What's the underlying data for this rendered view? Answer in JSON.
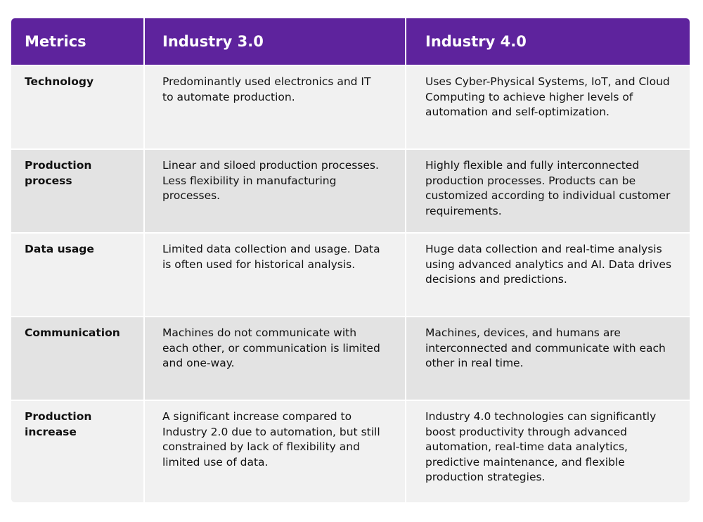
{
  "header": [
    "Metrics",
    "Industry 3.0",
    "Industry 4.0"
  ],
  "rows": [
    {
      "metric": "Technology",
      "i3": "Predominantly used electronics and IT to automate production.",
      "i4": "Uses Cyber-Physical Systems, IoT, and Cloud Computing to achieve higher levels of automation and self-optimization."
    },
    {
      "metric": "Production process",
      "i3": "Linear and siloed production processes. Less flexibility in manufacturing processes.",
      "i4": "Highly flexible and fully interconnected production processes. Products can be customized according to individual customer requirements."
    },
    {
      "metric": "Data usage",
      "i3": "Limited data collection and usage. Data is often used for historical analysis.",
      "i4": "Huge data collection and real-time analysis using advanced analytics and AI. Data drives decisions and predictions."
    },
    {
      "metric": "Communication",
      "i3": "Machines do not communicate with each other, or communication is limited and one-way.",
      "i4": "Machines, devices, and humans are interconnected and communicate with each other in real time."
    },
    {
      "metric": "Production increase",
      "i3": "A significant increase compared to Industry 2.0 due to automation, but still constrained by lack of flexibility and limited use of data.",
      "i4": "Industry 4.0 technologies can significantly boost productivity through advanced automation, real-time data analytics, predictive maintenance, and flexible production strategies."
    }
  ],
  "colors": {
    "header": "#5e239d",
    "row_light": "#f1f1f1",
    "row_dark": "#e3e3e3"
  }
}
